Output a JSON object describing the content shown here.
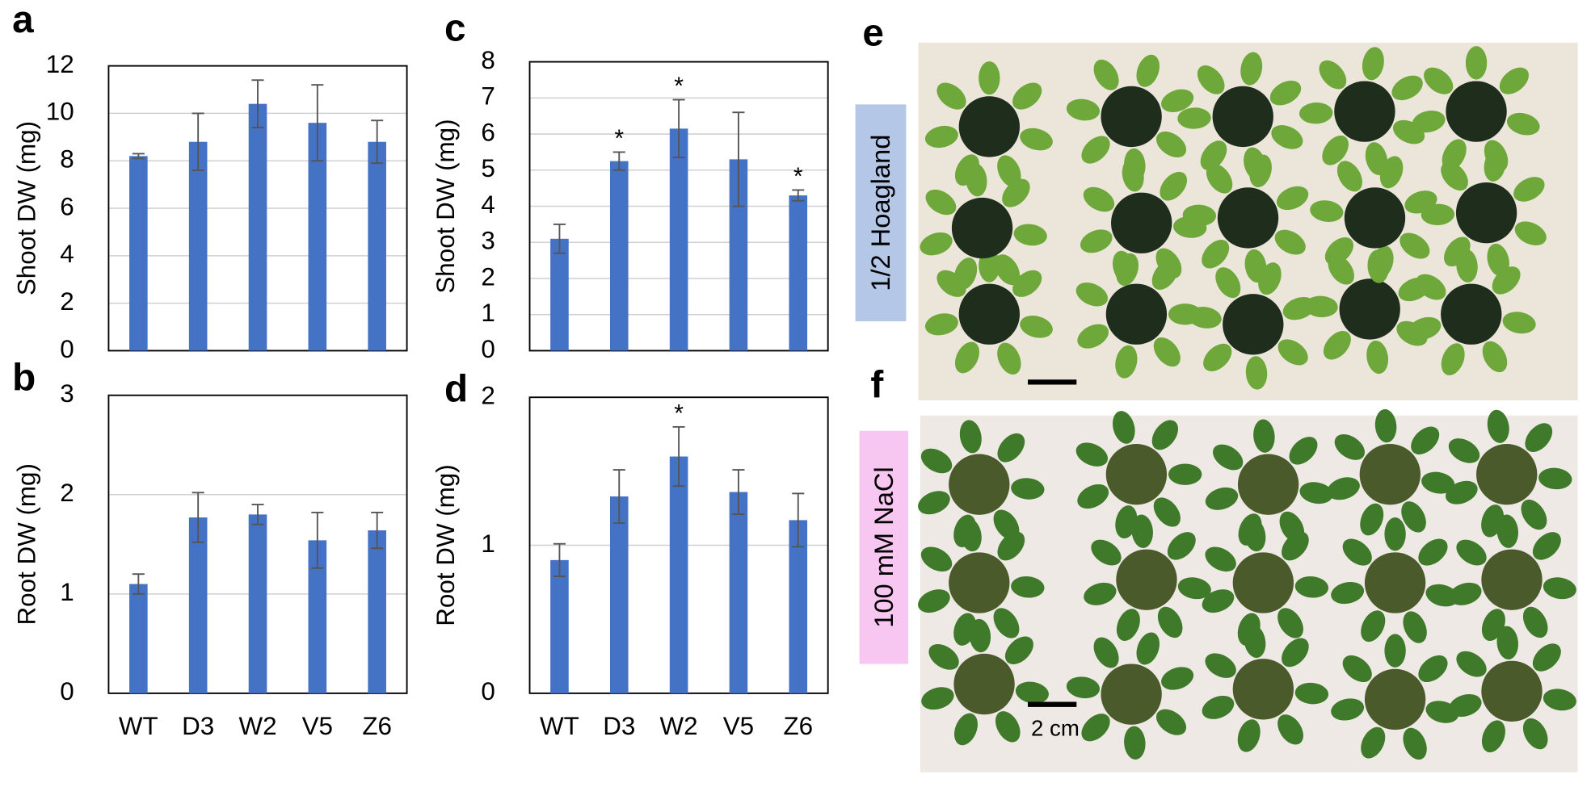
{
  "chart_data": [
    {
      "type": "bar",
      "panel": "a",
      "y_label": "Shoot DW (mg)",
      "values": [
        8.2,
        8.8,
        10.4,
        9.6,
        8.8
      ],
      "errors": [
        0.1,
        1.2,
        1.0,
        1.6,
        0.9
      ],
      "color": "#4472c4",
      "ylim": [
        0,
        12
      ],
      "yticks": [
        0,
        2,
        4,
        6,
        8,
        10,
        12
      ],
      "grid": true
    },
    {
      "type": "bar",
      "panel": "b",
      "y_label": "Root DW (mg)",
      "categories": [
        "WT",
        "D3",
        "W2",
        "V5",
        "Z6"
      ],
      "values": [
        1.1,
        1.77,
        1.8,
        1.54,
        1.64
      ],
      "errors": [
        0.1,
        0.25,
        0.1,
        0.28,
        0.18
      ],
      "color": "#4472c4",
      "ylim": [
        0,
        3
      ],
      "yticks": [
        0,
        1,
        2,
        3
      ],
      "grid": true
    },
    {
      "type": "bar",
      "panel": "c",
      "y_label": "Shoot DW (mg)",
      "values": [
        3.1,
        5.25,
        6.15,
        5.3,
        4.3
      ],
      "errors": [
        0.4,
        0.25,
        0.8,
        1.3,
        0.15
      ],
      "annotations": [
        null,
        "*",
        "*",
        null,
        "*"
      ],
      "color": "#4472c4",
      "ylim": [
        0,
        8
      ],
      "yticks": [
        0,
        1,
        2,
        3,
        4,
        5,
        6,
        7,
        8
      ],
      "grid": true
    },
    {
      "type": "bar",
      "panel": "d",
      "y_label": "Root DW (mg)",
      "categories": [
        "WT",
        "D3",
        "W2",
        "V5",
        "Z6"
      ],
      "values": [
        0.9,
        1.33,
        1.6,
        1.36,
        1.17
      ],
      "errors": [
        0.11,
        0.18,
        0.2,
        0.15,
        0.18
      ],
      "annotations": [
        null,
        null,
        "*",
        null,
        null
      ],
      "color": "#4472c4",
      "ylim": [
        0,
        2
      ],
      "yticks": [
        0,
        1,
        2
      ],
      "grid": true
    }
  ],
  "photos": [
    {
      "panel": "e",
      "caption": "1/2 Hoagland"
    },
    {
      "panel": "f",
      "caption": "100 mM NaCl",
      "scale_bar": "2 cm"
    }
  ]
}
